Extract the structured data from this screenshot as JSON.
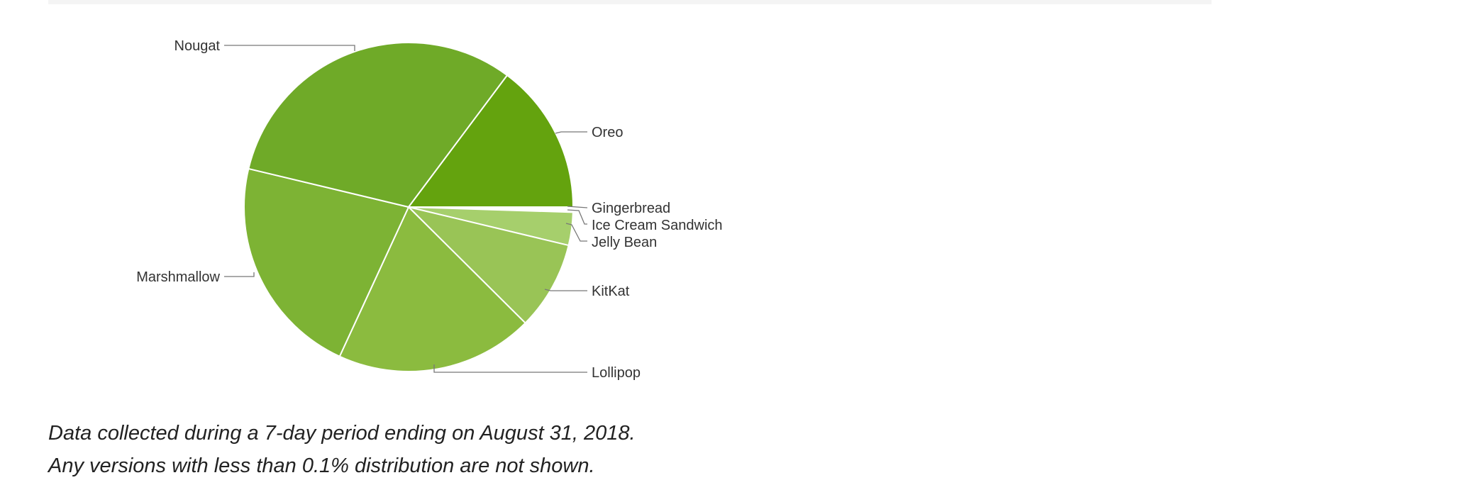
{
  "chart_data": {
    "type": "pie",
    "slices": [
      {
        "label": "Gingerbread",
        "value": 0.2,
        "color": "#ffffff"
      },
      {
        "label": "Ice Cream Sandwich",
        "value": 0.3,
        "color": "#ffffff"
      },
      {
        "label": "Jelly Bean",
        "value": 3.2,
        "color": "#a6cf6c"
      },
      {
        "label": "KitKat",
        "value": 8.6,
        "color": "#99c456"
      },
      {
        "label": "Lollipop",
        "value": 19.2,
        "color": "#8bbb3f"
      },
      {
        "label": "Marshmallow",
        "value": 21.6,
        "color": "#7db334"
      },
      {
        "label": "Nougat",
        "value": 31.1,
        "color": "#6faa28"
      },
      {
        "label": "Oreo",
        "value": 14.6,
        "color": "#64a30e"
      }
    ],
    "start_direction": "east",
    "direction": "clockwise",
    "slice_border_color": "#ffffff",
    "label_placement": "outside-with-leader-lines",
    "legend": "none"
  },
  "footnotes": {
    "line1": "Data collected during a 7-day period ending on August 31, 2018.",
    "line2": "Any versions with less than 0.1% distribution are not shown."
  },
  "colors": {
    "label_text": "#333333",
    "leader_line": "#777777",
    "top_bar": "#f4f4f4"
  }
}
